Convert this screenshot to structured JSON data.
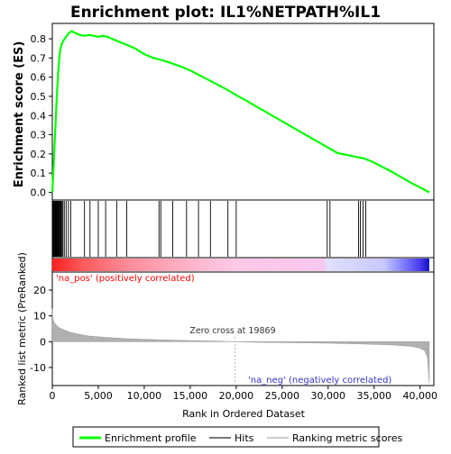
{
  "chart_data": {
    "type": "line",
    "title": "Enrichment plot: IL1%NETPATH%IL1",
    "top_panel": {
      "ylabel": "Enrichment score (ES)",
      "ylim": [
        -0.04,
        0.88
      ],
      "yticks": [
        "0.0",
        "0.1",
        "0.2",
        "0.3",
        "0.4",
        "0.5",
        "0.6",
        "0.7",
        "0.8"
      ],
      "series": [
        {
          "name": "Enrichment profile",
          "color": "#00ff00",
          "x": [
            0,
            150,
            250,
            350,
            450,
            550,
            650,
            750,
            850,
            1000,
            1200,
            1500,
            1800,
            2100,
            2500,
            3000,
            3500,
            4000,
            4500,
            5000,
            5500,
            6000,
            7000,
            8000,
            9000,
            10000,
            11000,
            11800,
            12500,
            14000,
            15000,
            16000,
            17000,
            18000,
            19000,
            19869,
            21000,
            23000,
            25000,
            27000,
            29000,
            31000,
            33000,
            34000,
            35000,
            37000,
            39000,
            41000
          ],
          "y": [
            0.0,
            0.14,
            0.25,
            0.36,
            0.46,
            0.55,
            0.63,
            0.69,
            0.74,
            0.77,
            0.79,
            0.81,
            0.83,
            0.84,
            0.83,
            0.82,
            0.815,
            0.82,
            0.815,
            0.81,
            0.815,
            0.81,
            0.79,
            0.77,
            0.75,
            0.72,
            0.7,
            0.69,
            0.68,
            0.655,
            0.635,
            0.61,
            0.585,
            0.56,
            0.535,
            0.51,
            0.48,
            0.425,
            0.37,
            0.315,
            0.26,
            0.205,
            0.185,
            0.175,
            0.155,
            0.105,
            0.05,
            0.0
          ]
        }
      ]
    },
    "hits": {
      "name": "Hits",
      "positions": [
        60,
        120,
        180,
        240,
        300,
        360,
        420,
        480,
        540,
        600,
        660,
        720,
        800,
        880,
        960,
        1050,
        1150,
        1300,
        1500,
        1750,
        2000,
        3500,
        4100,
        5000,
        5800,
        7000,
        8100,
        11600,
        11800,
        13100,
        14600,
        15900,
        17200,
        19100,
        20000,
        29900,
        30200,
        33300,
        33500,
        33800,
        34100
      ]
    },
    "gradient_labels": {
      "positive": "'na_pos' (positively correlated)",
      "negative": "'na_neg' (negatively correlated)",
      "zero_cross": "Zero cross at 19869"
    },
    "bottom_panel": {
      "name": "Ranking metric scores",
      "ylabel": "Ranked list metric (PreRanked)",
      "ylim": [
        -17,
        27
      ],
      "yticks": [
        "-10",
        "0",
        "10",
        "20"
      ],
      "x": [
        0,
        40,
        100,
        200,
        400,
        700,
        1000,
        1500,
        2000,
        3000,
        4000,
        6000,
        8000,
        10000,
        12000,
        15000,
        18000,
        19869,
        22000,
        26000,
        30000,
        34000,
        37000,
        39000,
        40000,
        40500,
        40800,
        41000
      ],
      "y": [
        13,
        10,
        8.5,
        7.5,
        6.5,
        5.5,
        5,
        4.2,
        3.6,
        2.8,
        2.2,
        1.6,
        1.2,
        0.9,
        0.7,
        0.45,
        0.2,
        0.0,
        -0.2,
        -0.4,
        -0.6,
        -0.9,
        -1.3,
        -1.8,
        -2.5,
        -3.5,
        -6,
        -16
      ]
    },
    "xlabel": "Rank in Ordered Dataset",
    "xlim": [
      0,
      41500
    ],
    "xticks": [
      "0",
      "5,000",
      "10,000",
      "15,000",
      "20,000",
      "25,000",
      "30,000",
      "35,000",
      "40,000"
    ],
    "xtick_values": [
      0,
      5000,
      10000,
      15000,
      20000,
      25000,
      30000,
      35000,
      40000
    ],
    "legend": {
      "placement": "bottom",
      "items": [
        {
          "label": "Enrichment profile",
          "color": "#00ff00"
        },
        {
          "label": "Hits",
          "color": "#000000"
        },
        {
          "label": "Ranking metric scores",
          "color": "#c0c0c0"
        }
      ]
    }
  }
}
